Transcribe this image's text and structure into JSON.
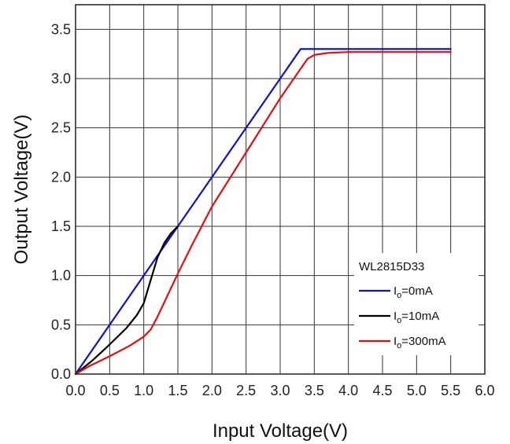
{
  "chart_data": {
    "type": "line",
    "xlabel": "Input Voltage(V)",
    "ylabel": "Output Voltage(V)",
    "xlim": [
      0,
      6
    ],
    "ylim": [
      0,
      3.75
    ],
    "xticks": [
      "0.0",
      "0.5",
      "1.0",
      "1.5",
      "2.0",
      "2.5",
      "3.0",
      "3.5",
      "4.0",
      "4.5",
      "5.0",
      "5.5",
      "6.0"
    ],
    "yticks": [
      "0.0",
      "0.5",
      "1.0",
      "1.5",
      "2.0",
      "2.5",
      "3.0",
      "3.5"
    ],
    "grid": true,
    "legend": {
      "title": "WL2815D33",
      "placement": "bottom-right",
      "entries": [
        {
          "prefix": "I",
          "sub": "o",
          "suffix": "=0mA"
        },
        {
          "prefix": "I",
          "sub": "o",
          "suffix": "=10mA"
        },
        {
          "prefix": "I",
          "sub": "o",
          "suffix": "=300mA"
        }
      ]
    },
    "series": [
      {
        "color": "#1010d0",
        "x": [
          0,
          3.3,
          3.32,
          5.5
        ],
        "y": [
          0,
          3.3,
          3.3,
          3.3
        ]
      },
      {
        "color": "#000000",
        "x": [
          0,
          0.25,
          0.5,
          0.75,
          0.9,
          1.0,
          1.1,
          1.2,
          1.3,
          1.4,
          1.5
        ],
        "y": [
          0,
          0.14,
          0.3,
          0.47,
          0.6,
          0.72,
          0.95,
          1.18,
          1.33,
          1.43,
          1.5
        ]
      },
      {
        "color": "#e01010",
        "x": [
          0,
          0.2,
          0.5,
          0.8,
          1.0,
          1.1,
          1.2,
          1.35,
          1.5,
          1.7,
          2.0,
          2.5,
          3.0,
          3.3,
          3.4,
          3.5,
          3.7,
          4.0,
          5.5
        ],
        "y": [
          0,
          0.08,
          0.18,
          0.29,
          0.38,
          0.45,
          0.58,
          0.8,
          1.02,
          1.3,
          1.7,
          2.25,
          2.8,
          3.1,
          3.2,
          3.24,
          3.26,
          3.27,
          3.27
        ]
      }
    ]
  }
}
